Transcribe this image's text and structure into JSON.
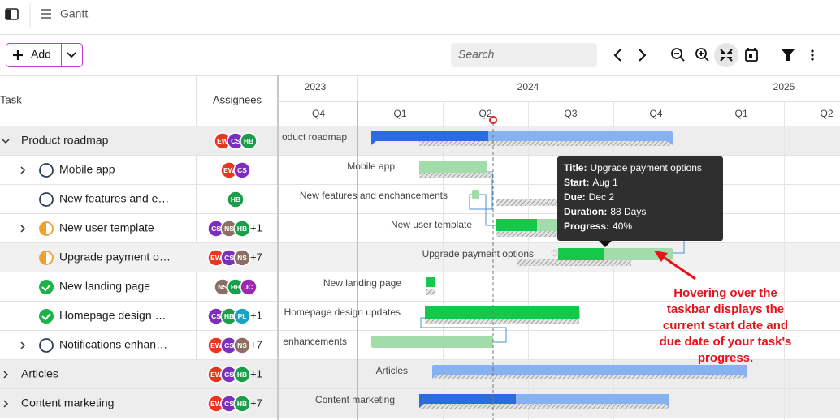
{
  "header": {
    "title": "Gantt"
  },
  "toolbar": {
    "add_button": "Add",
    "search_placeholder": "Search"
  },
  "grid": {
    "columns": [
      "Task",
      "Assignees"
    ]
  },
  "timeline": {
    "years": [
      "2023",
      "2024",
      "2025"
    ],
    "quarters": [
      "Q4",
      "Q1",
      "Q2",
      "Q3",
      "Q4",
      "Q1",
      "Q2"
    ]
  },
  "rows": [
    {
      "name": "Product roadmap",
      "bar_label": "oduct roadmap",
      "assignees": [
        "EW",
        "CS",
        "HB"
      ]
    },
    {
      "name": "Mobile app",
      "bar_label": "Mobile app",
      "assignees": [
        "EW",
        "CS"
      ]
    },
    {
      "name": "New features and e…",
      "bar_label": "New features and enchancements",
      "assignees": [
        "HB"
      ]
    },
    {
      "name": "New user template",
      "bar_label": "New user template",
      "assignees": [
        "CS",
        "NS",
        "HB"
      ],
      "more": "+1"
    },
    {
      "name": "Upgrade payment o…",
      "bar_label": "Upgrade payment options",
      "assignees": [
        "EW",
        "CS",
        "NS"
      ],
      "more": "+7"
    },
    {
      "name": "New landing page",
      "bar_label": "New landing page",
      "assignees": [
        "NS",
        "HB",
        "JC"
      ]
    },
    {
      "name": "Homepage design …",
      "bar_label": "Homepage design updates",
      "assignees": [
        "CS",
        "HB",
        "PL"
      ],
      "more": "+1"
    },
    {
      "name": "Notifications enhan…",
      "bar_label": "enhancements",
      "assignees": [
        "EW",
        "CS",
        "NS"
      ],
      "more": "+7"
    },
    {
      "name": "Articles",
      "bar_label": "Articles",
      "assignees": [
        "EW",
        "CS",
        "HB"
      ],
      "more": "+1"
    },
    {
      "name": "Content marketing",
      "bar_label": "Content marketing",
      "assignees": [
        "EW",
        "CS",
        "HB"
      ],
      "more": "+7"
    }
  ],
  "tooltip": {
    "lines": [
      {
        "label": "Title:",
        "value": "Upgrade payment options"
      },
      {
        "label": "Start:",
        "value": "Aug 1"
      },
      {
        "label": "Due:",
        "value": "Dec 2"
      },
      {
        "label": "Duration:",
        "value": "88 Days"
      },
      {
        "label": "Progress:",
        "value": "40%"
      }
    ]
  },
  "annotation": {
    "lines": [
      "Hovering over the",
      "taskbar displays the",
      "current start date and",
      "due date of your task's",
      "progress."
    ]
  }
}
